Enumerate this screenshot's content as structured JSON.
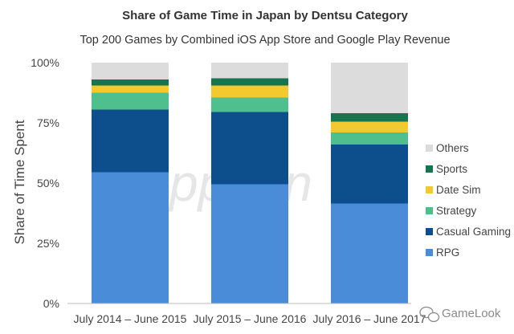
{
  "chart_data": {
    "type": "bar",
    "stacked": true,
    "title": "Share of Game Time in Japan by Dentsu Category",
    "subtitle": "Top 200 Games by Combined iOS App Store and Google Play Revenue",
    "xlabel": "",
    "ylabel": "Share of Time Spent",
    "ylim": [
      0,
      100
    ],
    "yticks": [
      "0%",
      "25%",
      "50%",
      "75%",
      "100%"
    ],
    "categories": [
      "July 2014 – June 2015",
      "July 2015 – June 2016",
      "July 2016 – June 2017"
    ],
    "series": [
      {
        "name": "RPG",
        "color": "#4a8cd8",
        "values": [
          54.5,
          49.5,
          41.5
        ]
      },
      {
        "name": "Casual Gaming",
        "color": "#0d4f8c",
        "values": [
          26,
          30,
          24.5
        ]
      },
      {
        "name": "Strategy",
        "color": "#4fbf8e",
        "values": [
          7,
          6,
          5
        ]
      },
      {
        "name": "Date Sim",
        "color": "#f2c92e",
        "values": [
          3,
          5,
          4.5
        ]
      },
      {
        "name": "Sports",
        "color": "#16744f",
        "values": [
          2.5,
          3,
          3.5
        ]
      },
      {
        "name": "Others",
        "color": "#dcdcdc",
        "values": [
          7,
          6.5,
          21
        ]
      }
    ],
    "legend_position": "right",
    "grid": false
  },
  "watermark": {
    "logo_text": "GameLook",
    "logo_icon": "wechat-icon",
    "background_text": "ppann"
  }
}
